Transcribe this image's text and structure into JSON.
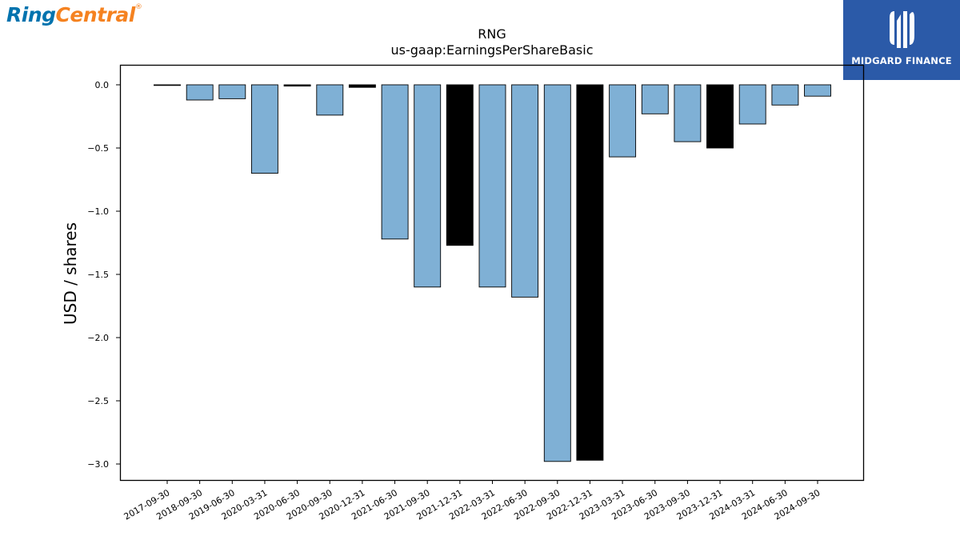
{
  "logos": {
    "left_brand": "RingCentral",
    "right_brand": "MIDGARD FINANCE",
    "colors": {
      "ring": "#0073ae",
      "central": "#f58220",
      "midgard_bg": "#2b5aa8"
    }
  },
  "chart_data": {
    "type": "bar",
    "title": "RNG",
    "subtitle": "us-gaap:EarningsPerShareBasic",
    "xlabel": "",
    "ylabel": "USD / shares",
    "ylim": [
      -3.15,
      0.16
    ],
    "yticks": [
      0.0,
      -0.5,
      -1.0,
      -1.5,
      -2.0,
      -2.5,
      -3.0
    ],
    "ytick_labels": [
      "0.0",
      "−0.5",
      "−1.0",
      "−1.5",
      "−2.0",
      "−2.5",
      "−3.0"
    ],
    "grid": false,
    "categories": [
      "2017-09-30",
      "2018-09-30",
      "2019-06-30",
      "2020-03-31",
      "2020-06-30",
      "2020-09-30",
      "2020-12-31",
      "2021-06-30",
      "2021-09-30",
      "2021-12-31",
      "2022-03-31",
      "2022-06-30",
      "2022-09-30",
      "2022-12-31",
      "2023-03-31",
      "2023-06-30",
      "2023-09-30",
      "2023-12-31",
      "2024-03-31",
      "2024-06-30",
      "2024-09-30"
    ],
    "values": [
      -0.005,
      -0.12,
      -0.11,
      -0.7,
      -0.01,
      -0.24,
      -0.02,
      -1.22,
      -1.6,
      -1.27,
      -1.6,
      -1.68,
      -2.98,
      -2.97,
      -0.57,
      -0.23,
      -0.45,
      -0.5,
      -0.31,
      -0.16,
      -0.09
    ],
    "bar_colors": [
      "#7fb0d5",
      "#7fb0d5",
      "#7fb0d5",
      "#7fb0d5",
      "#000000",
      "#7fb0d5",
      "#000000",
      "#7fb0d5",
      "#7fb0d5",
      "#000000",
      "#7fb0d5",
      "#7fb0d5",
      "#7fb0d5",
      "#000000",
      "#7fb0d5",
      "#7fb0d5",
      "#7fb0d5",
      "#000000",
      "#7fb0d5",
      "#7fb0d5",
      "#7fb0d5"
    ]
  }
}
